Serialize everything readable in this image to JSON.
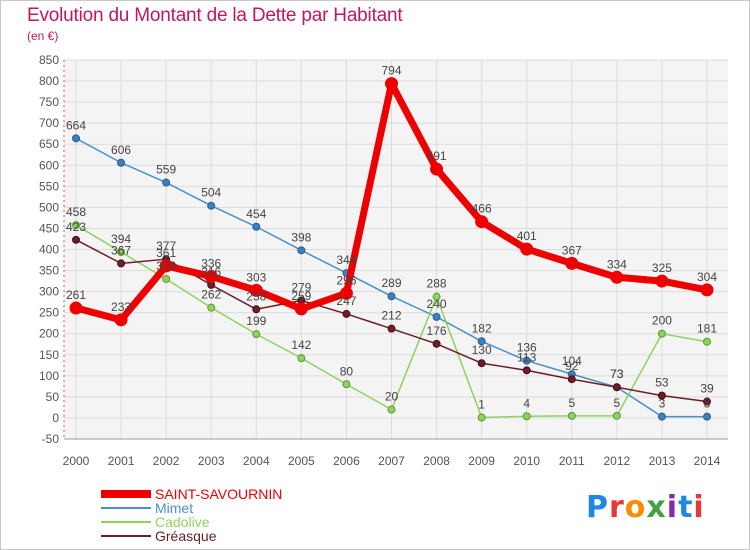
{
  "title": "Evolution du Montant de la Dette par Habitant",
  "subtitle": "(en €)",
  "logo_text": "Proxiti",
  "chart_data": {
    "type": "line",
    "title": "Evolution du Montant de la Dette par Habitant",
    "subtitle": "(en €)",
    "x": [
      "2000",
      "2001",
      "2002",
      "2003",
      "2004",
      "2005",
      "2006",
      "2007",
      "2008",
      "2009",
      "2010",
      "2011",
      "2012",
      "2013",
      "2014"
    ],
    "ylim": [
      -50,
      850
    ],
    "yticks": [
      -50,
      0,
      50,
      100,
      150,
      200,
      250,
      300,
      350,
      400,
      450,
      500,
      550,
      600,
      650,
      700,
      750,
      800,
      850
    ],
    "grid": true,
    "legend_position": "bottom-left",
    "series": [
      {
        "name": "Mimet",
        "color": "#4a90c8",
        "values": [
          664,
          606,
          559,
          504,
          454,
          398,
          344,
          289,
          240,
          182,
          136,
          104,
          73,
          3,
          3
        ]
      },
      {
        "name": "Cadolive",
        "color": "#8fd35f",
        "values": [
          458,
          394,
          330,
          262,
          199,
          142,
          80,
          20,
          288,
          1,
          4,
          5,
          5,
          200,
          181
        ]
      },
      {
        "name": "Gréasque",
        "color": "#6b1e28",
        "values": [
          423,
          367,
          377,
          316,
          258,
          279,
          247,
          212,
          176,
          130,
          113,
          92,
          73,
          53,
          39
        ]
      },
      {
        "name": "SAINT-SAVOURNIN",
        "color": "#ee0000",
        "values": [
          261,
          233,
          361,
          336,
          303,
          259,
          296,
          794,
          591,
          466,
          401,
          367,
          334,
          325,
          304
        ]
      }
    ],
    "legend_order": [
      "SAINT-SAVOURNIN",
      "Mimet",
      "Cadolive",
      "Gréasque"
    ]
  }
}
